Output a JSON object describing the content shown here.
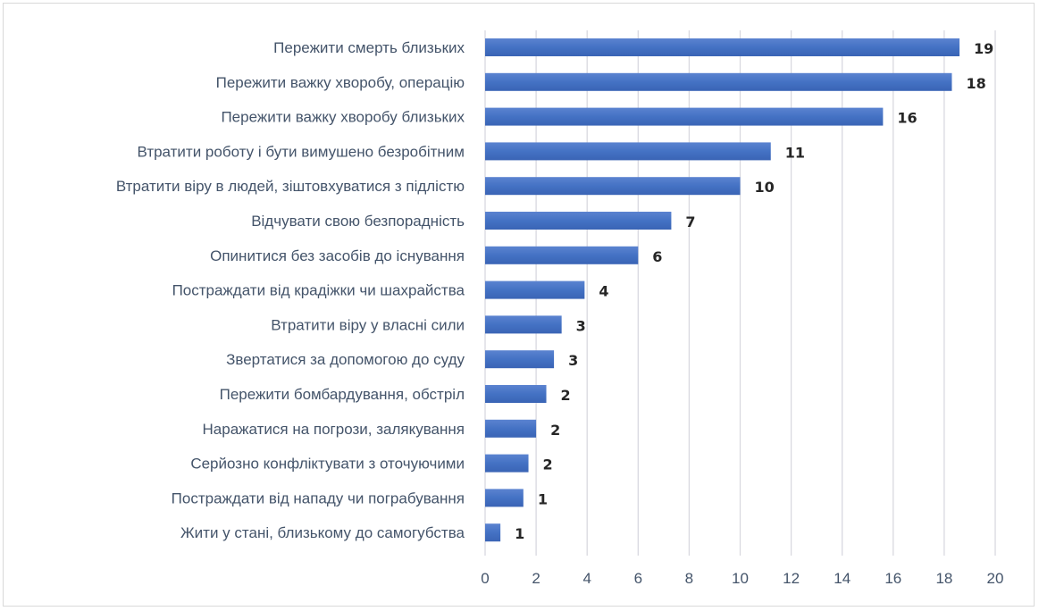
{
  "chart_data": {
    "type": "bar",
    "orientation": "horizontal",
    "title": "",
    "xlabel": "",
    "ylabel": "",
    "xlim": [
      0,
      20
    ],
    "xticks": [
      0,
      2,
      4,
      6,
      8,
      10,
      12,
      14,
      16,
      18,
      20
    ],
    "grid": true,
    "legend": "none",
    "bar_color": "#4472c4",
    "categories": [
      "Пережити смерть близьких",
      "Пережити важку хворобу, операцію",
      "Пережити важку хворобу близьких",
      "Втратити роботу і бути вимушено безробітним",
      "Втратити віру в людей, зіштовхуватися з підлістю",
      "Відчувати свою безпорадність",
      "Опинитися без засобів до існування",
      "Постраждати від крадіжки чи шахрайства",
      "Втратити віру у власні сили",
      "Звертатися за допомогою до суду",
      "Пережити бомбардування, обстріл",
      "Наражатися на погрози, залякування",
      "Серйозно конфліктувати з оточуючими",
      "Постраждати від нападу чи пограбування",
      "Жити у стані, близькому до самогубства"
    ],
    "values": [
      18.6,
      18.3,
      15.6,
      11.2,
      10.0,
      7.3,
      6.0,
      3.9,
      3.0,
      2.7,
      2.4,
      2.0,
      1.7,
      1.5,
      0.6
    ],
    "data_labels": [
      "19",
      "18",
      "16",
      "11",
      "10",
      "7",
      "6",
      "4",
      "3",
      "3",
      "2",
      "2",
      "2",
      "1",
      "1"
    ]
  }
}
